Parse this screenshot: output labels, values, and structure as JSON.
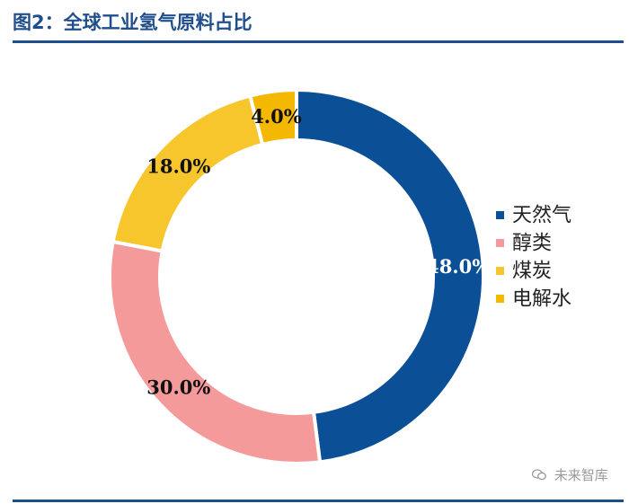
{
  "header": {
    "title": "图2：全球工业氢气原料占比"
  },
  "chart_data": {
    "type": "pie",
    "title": "图2：全球工业氢气原料占比",
    "donut": true,
    "categories": [
      "天然气",
      "醇类",
      "煤炭",
      "电解水"
    ],
    "values": [
      48.0,
      30.0,
      18.0,
      4.0
    ],
    "labels": [
      "48.0%",
      "30.0%",
      "18.0%",
      "4.0%"
    ],
    "colors": [
      "#0b4f96",
      "#f59a9a",
      "#f7c52c",
      "#f5b800"
    ],
    "label_colors": [
      "#ffffff",
      "#111111",
      "#111111",
      "#111111"
    ],
    "legend_position": "right",
    "start_angle": "12 o'clock",
    "direction": "clockwise"
  },
  "watermark": {
    "text": "未来智库",
    "icon": "wechat-icon"
  }
}
